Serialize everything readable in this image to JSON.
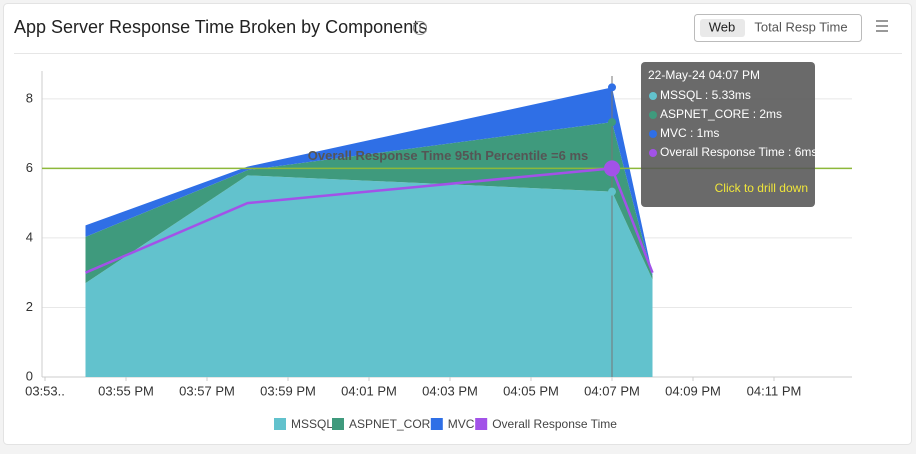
{
  "header": {
    "title": "App Server Response Time Broken by Components",
    "toggle": [
      "Web",
      "Total Resp Time"
    ]
  },
  "chart_data": {
    "type": "area",
    "x": [
      "03:54 PM",
      "03:58 PM",
      "04:07 PM",
      "04:08 PM"
    ],
    "xlim": [
      "03:53 PM",
      "04:13 PM"
    ],
    "xticks": [
      {
        "value": "03:53 PM",
        "label": "03:53.."
      },
      "03:55 PM",
      "03:57 PM",
      "03:59 PM",
      "04:01 PM",
      "04:03 PM",
      "04:05 PM",
      "04:07 PM",
      "04:09 PM",
      "04:11 PM"
    ],
    "ylim": [
      0,
      8.8
    ],
    "yticks": [
      0,
      2,
      4,
      6,
      8
    ],
    "grid": true,
    "series": [
      {
        "name": "MSSQL",
        "color": "#62c2cd",
        "values": [
          2.7,
          5.8,
          5.33,
          2.8
        ]
      },
      {
        "name": "ASPNET_CORE",
        "color": "#3f9a7d",
        "values": [
          1.33,
          0.15,
          2,
          0.1
        ]
      },
      {
        "name": "MVC",
        "color": "#2f6fe6",
        "values": [
          0.33,
          0.1,
          1,
          0.05
        ]
      },
      {
        "name": "Overall Response Time",
        "color": "#a252e8",
        "type": "line",
        "values": [
          3,
          5,
          6,
          3
        ]
      }
    ],
    "threshold": {
      "value": 6,
      "label": "Overall Response Time 95th Percentile =6 ms",
      "color": "#8db83a"
    },
    "tooltip": {
      "title": "22-May-24 04:07 PM",
      "lines": [
        "MSSQL : 5.33ms",
        "ASPNET_CORE : 2ms",
        "MVC : 1ms",
        "Overall Response Time : 6ms"
      ],
      "action": "Click to drill down"
    }
  }
}
